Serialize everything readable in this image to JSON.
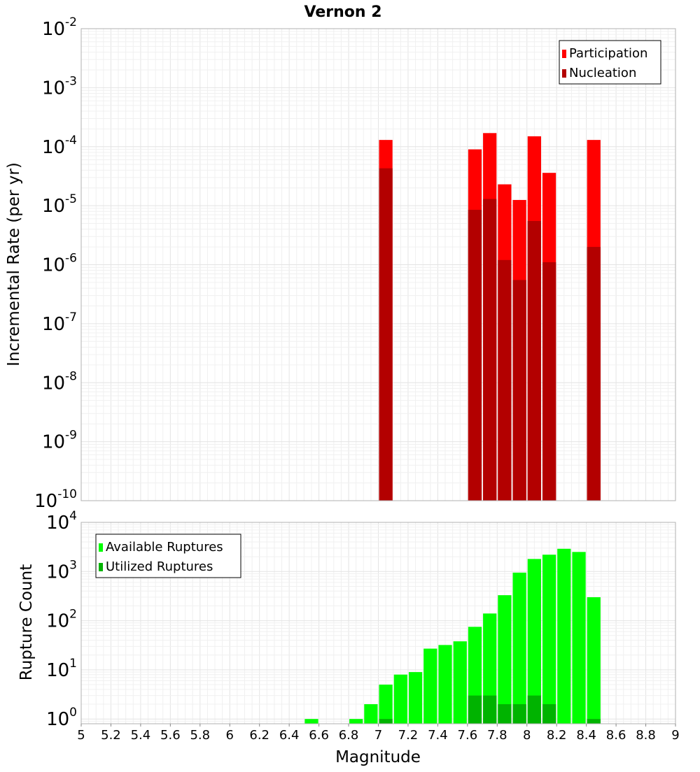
{
  "chart_data": [
    {
      "id": "top",
      "type": "bar",
      "title": "Vernon 2",
      "xlabel": "",
      "ylabel": "Incremental Rate (per yr)",
      "yscale": "log",
      "ylim": [
        1e-10,
        0.01
      ],
      "y_tick_exponents": [
        "-10",
        "-9",
        "-8",
        "-7",
        "-6",
        "-5",
        "-4",
        "-3",
        "-2"
      ],
      "x_range": [
        5,
        9
      ],
      "bin_width": 0.1,
      "legend_position": "top-right",
      "series": [
        {
          "name": "Participation",
          "color": "#ff0000",
          "points": [
            {
              "x": 7.05,
              "y": 0.00013
            },
            {
              "x": 7.65,
              "y": 9e-05
            },
            {
              "x": 7.75,
              "y": 0.00017
            },
            {
              "x": 7.85,
              "y": 2.3e-05
            },
            {
              "x": 7.95,
              "y": 1.25e-05
            },
            {
              "x": 8.05,
              "y": 0.00015
            },
            {
              "x": 8.15,
              "y": 3.6e-05
            },
            {
              "x": 8.45,
              "y": 0.00013
            }
          ]
        },
        {
          "name": "Nucleation",
          "color": "#b30000",
          "points": [
            {
              "x": 7.05,
              "y": 4.3e-05
            },
            {
              "x": 7.65,
              "y": 8.5e-06
            },
            {
              "x": 7.75,
              "y": 1.3e-05
            },
            {
              "x": 7.85,
              "y": 1.2e-06
            },
            {
              "x": 7.95,
              "y": 5.5e-07
            },
            {
              "x": 8.05,
              "y": 5.5e-06
            },
            {
              "x": 8.15,
              "y": 1.1e-06
            },
            {
              "x": 8.45,
              "y": 2e-06
            }
          ]
        }
      ]
    },
    {
      "id": "bottom",
      "type": "bar",
      "title": "",
      "xlabel": "Magnitude",
      "ylabel": "Rupture Count",
      "yscale": "log",
      "ylim": [
        0.8,
        10000.0
      ],
      "y_tick_exponents": [
        "0",
        "1",
        "2",
        "3",
        "4"
      ],
      "x_range": [
        5,
        9
      ],
      "x_ticks": [
        "5",
        "5.2",
        "5.4",
        "5.6",
        "5.8",
        "6",
        "6.2",
        "6.4",
        "6.6",
        "6.8",
        "7",
        "7.2",
        "7.4",
        "7.6",
        "7.8",
        "8",
        "8.2",
        "8.4",
        "8.6",
        "8.8",
        "9"
      ],
      "bin_width": 0.1,
      "legend_position": "top-left",
      "series": [
        {
          "name": "Available Ruptures",
          "color": "#00ff00",
          "points": [
            {
              "x": 6.55,
              "y": 1
            },
            {
              "x": 6.85,
              "y": 1
            },
            {
              "x": 6.95,
              "y": 2
            },
            {
              "x": 7.05,
              "y": 5
            },
            {
              "x": 7.15,
              "y": 8
            },
            {
              "x": 7.25,
              "y": 9
            },
            {
              "x": 7.35,
              "y": 27
            },
            {
              "x": 7.45,
              "y": 32
            },
            {
              "x": 7.55,
              "y": 38
            },
            {
              "x": 7.65,
              "y": 75
            },
            {
              "x": 7.75,
              "y": 140
            },
            {
              "x": 7.85,
              "y": 330
            },
            {
              "x": 7.95,
              "y": 950
            },
            {
              "x": 8.05,
              "y": 1800
            },
            {
              "x": 8.15,
              "y": 2200
            },
            {
              "x": 8.25,
              "y": 2900
            },
            {
              "x": 8.35,
              "y": 2500
            },
            {
              "x": 8.45,
              "y": 300
            }
          ]
        },
        {
          "name": "Utilized Ruptures",
          "color": "#00b300",
          "points": [
            {
              "x": 7.05,
              "y": 1
            },
            {
              "x": 7.65,
              "y": 3
            },
            {
              "x": 7.75,
              "y": 3
            },
            {
              "x": 7.85,
              "y": 2
            },
            {
              "x": 7.95,
              "y": 2
            },
            {
              "x": 8.05,
              "y": 3
            },
            {
              "x": 8.15,
              "y": 2
            },
            {
              "x": 8.45,
              "y": 1
            }
          ]
        }
      ]
    }
  ]
}
